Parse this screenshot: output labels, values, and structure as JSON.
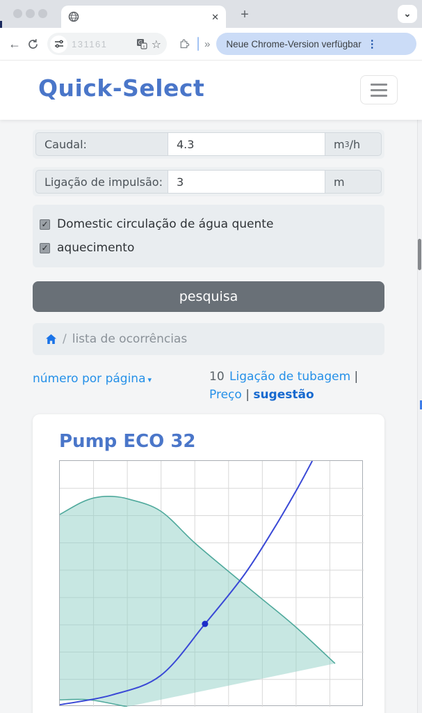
{
  "browser": {
    "tab": {
      "favicon": "globe-icon",
      "close_icon": "✕"
    },
    "new_tab_icon": "+",
    "window_chevron_icon": "⌄",
    "toolbar": {
      "back_icon": "←",
      "url_text": "131161",
      "star_icon": "☆",
      "overflow_icon": "»",
      "update_button": "Neue Chrome-Version verfügbar",
      "more_icon": "⋮"
    }
  },
  "header": {
    "title": "Quick-Select"
  },
  "form": {
    "rows": [
      {
        "label": "Caudal:",
        "value": "4.3",
        "unit_prefix": "m",
        "unit_sup": "3",
        "unit_suffix": "/h"
      },
      {
        "label": "Ligação de impulsão:",
        "value": "3",
        "unit_prefix": "m",
        "unit_sup": "",
        "unit_suffix": ""
      }
    ],
    "checkboxes": [
      {
        "label": "Domestic circulação de água quente",
        "checked": true,
        "check_glyph": "✓"
      },
      {
        "label": "aquecimento",
        "checked": true,
        "check_glyph": "✓"
      }
    ],
    "submit_label": "pesquisa"
  },
  "breadcrumb": {
    "home_icon": "home-icon",
    "separator": "/",
    "current": "lista de ocorrências"
  },
  "pagination": {
    "per_page_label": "número por página",
    "caret_icon": "▾",
    "count": "10",
    "link1": "Ligação de tubagem",
    "sep1": "|",
    "link2": "Preço",
    "sep2": "|",
    "active": "sugestão"
  },
  "result_card": {
    "title": "Pump ECO 32"
  },
  "colors": {
    "title_blue": "#4a76c9",
    "link_blue": "#2590e8",
    "active_link_blue": "#1669cf",
    "button_gray": "#697077",
    "home_icon_blue": "#1a73e8",
    "update_pill_bg": "#cbdcf7"
  },
  "chart_data": {
    "type": "area",
    "title": "Pump ECO 32",
    "xlabel": "",
    "ylabel": "",
    "axes": {
      "x_ticks_visible": false,
      "y_ticks_visible": false,
      "grid_columns": 9,
      "grid_rows": 9
    },
    "note": "coordinates are percent of plot area, y measured downward from top",
    "series": [
      {
        "name": "allowed-operating-envelope",
        "type": "area-band",
        "stroke": "#4fa99c",
        "fill": "rgba(144,207,198,0.5)",
        "upper_pct": [
          [
            0,
            21.8
          ],
          [
            6.9,
            17.0
          ],
          [
            11.4,
            15.0
          ],
          [
            16.5,
            14.4
          ],
          [
            22.9,
            15.6
          ],
          [
            33.2,
            20.4
          ],
          [
            44.2,
            33.1
          ],
          [
            55.4,
            44.8
          ],
          [
            66.8,
            56.4
          ],
          [
            77.8,
            67.7
          ],
          [
            90.6,
            82.4
          ]
        ],
        "lower_pct": [
          [
            0,
            97.2
          ],
          [
            9.8,
            97.2
          ],
          [
            22.2,
            100
          ],
          [
            90.6,
            82.4
          ]
        ]
      },
      {
        "name": "system-curve",
        "type": "line",
        "stroke": "#3a49d6",
        "points_pct": [
          [
            0,
            99.2
          ],
          [
            17.2,
            95.2
          ],
          [
            33.2,
            87.3
          ],
          [
            47.8,
            66.3
          ],
          [
            60.6,
            46.5
          ],
          [
            70.5,
            27.5
          ],
          [
            78.3,
            11.0
          ],
          [
            83.1,
            0
          ]
        ]
      }
    ],
    "operating_point_pct": {
      "x": 47.8,
      "y": 66.3,
      "color": "#1b2cc8"
    }
  }
}
